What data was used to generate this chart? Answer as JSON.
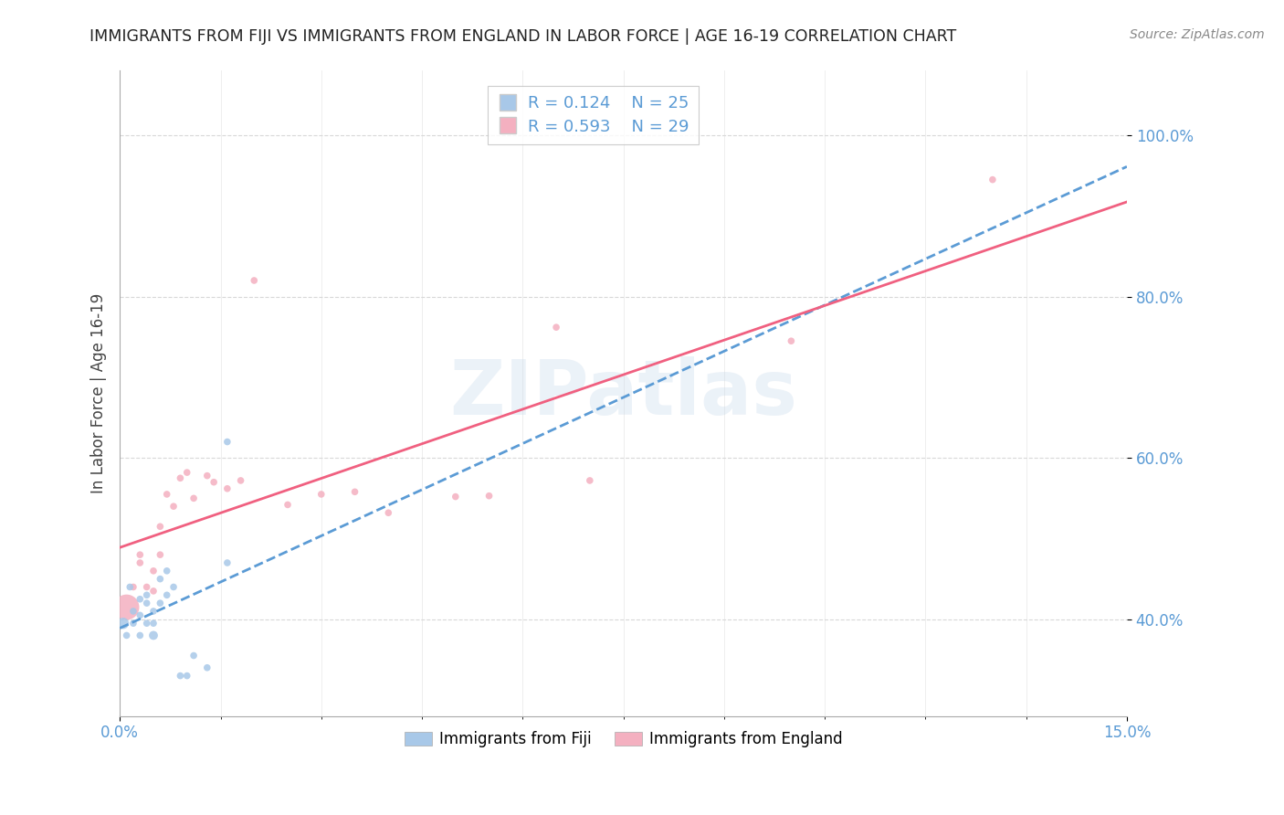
{
  "title": "IMMIGRANTS FROM FIJI VS IMMIGRANTS FROM ENGLAND IN LABOR FORCE | AGE 16-19 CORRELATION CHART",
  "source": "Source: ZipAtlas.com",
  "ylabel": "In Labor Force | Age 16-19",
  "xlim": [
    0.0,
    0.15
  ],
  "ylim": [
    0.28,
    1.08
  ],
  "xticks": [
    0.0,
    0.15
  ],
  "xticklabels": [
    "0.0%",
    "15.0%"
  ],
  "yticks": [
    0.4,
    0.6,
    0.8,
    1.0
  ],
  "yticklabels": [
    "40.0%",
    "60.0%",
    "80.0%",
    "100.0%"
  ],
  "fiji_color": "#a8c8e8",
  "england_color": "#f4b0c0",
  "fiji_line_color": "#5b9bd5",
  "england_line_color": "#f06080",
  "fiji_R": 0.124,
  "fiji_N": 25,
  "england_R": 0.593,
  "england_N": 29,
  "fiji_x": [
    0.0005,
    0.001,
    0.0015,
    0.002,
    0.002,
    0.003,
    0.003,
    0.003,
    0.004,
    0.004,
    0.004,
    0.005,
    0.005,
    0.005,
    0.006,
    0.006,
    0.007,
    0.007,
    0.008,
    0.009,
    0.01,
    0.011,
    0.013,
    0.016,
    0.016
  ],
  "fiji_y": [
    0.395,
    0.38,
    0.44,
    0.395,
    0.41,
    0.425,
    0.405,
    0.38,
    0.43,
    0.42,
    0.395,
    0.38,
    0.41,
    0.395,
    0.45,
    0.42,
    0.43,
    0.46,
    0.44,
    0.33,
    0.33,
    0.355,
    0.34,
    0.62,
    0.47
  ],
  "fiji_sizes": [
    80,
    30,
    30,
    30,
    30,
    30,
    30,
    30,
    30,
    30,
    30,
    50,
    30,
    30,
    30,
    30,
    30,
    30,
    30,
    30,
    30,
    30,
    30,
    30,
    30
  ],
  "england_x": [
    0.001,
    0.002,
    0.003,
    0.003,
    0.004,
    0.005,
    0.005,
    0.006,
    0.006,
    0.007,
    0.008,
    0.009,
    0.01,
    0.011,
    0.013,
    0.014,
    0.016,
    0.018,
    0.02,
    0.025,
    0.03,
    0.035,
    0.04,
    0.05,
    0.055,
    0.065,
    0.07,
    0.1,
    0.13
  ],
  "england_y": [
    0.415,
    0.44,
    0.47,
    0.48,
    0.44,
    0.435,
    0.46,
    0.48,
    0.515,
    0.555,
    0.54,
    0.575,
    0.582,
    0.55,
    0.578,
    0.57,
    0.562,
    0.572,
    0.82,
    0.542,
    0.555,
    0.558,
    0.532,
    0.552,
    0.553,
    0.762,
    0.572,
    0.745,
    0.945
  ],
  "england_sizes": [
    400,
    30,
    30,
    30,
    30,
    30,
    30,
    30,
    30,
    30,
    30,
    30,
    30,
    30,
    30,
    30,
    30,
    30,
    30,
    30,
    30,
    30,
    30,
    30,
    30,
    30,
    30,
    30,
    30
  ],
  "watermark": "ZIPatlas",
  "background_color": "#ffffff",
  "grid_color": "#d8d8d8"
}
